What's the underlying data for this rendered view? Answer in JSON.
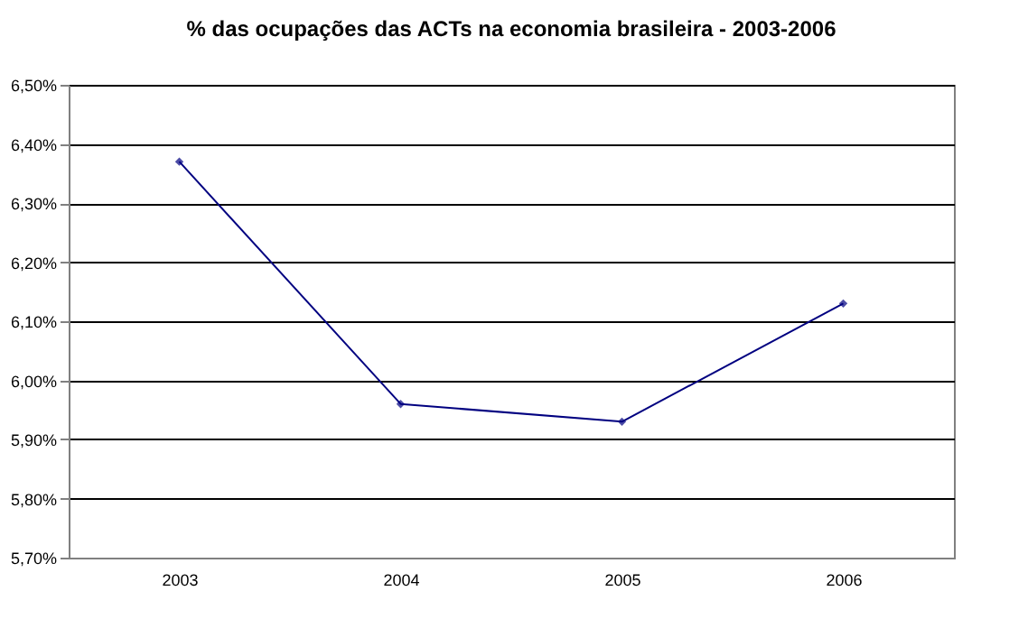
{
  "chart_data": {
    "type": "line",
    "title": "% das ocupações das ACTs na economia brasileira - 2003-2006",
    "categories": [
      "2003",
      "2004",
      "2005",
      "2006"
    ],
    "series": [
      {
        "color": "#000080",
        "values": [
          6.37,
          5.96,
          5.93,
          6.13
        ]
      }
    ],
    "ylim": [
      5.7,
      6.5
    ],
    "yticks": [
      {
        "value": 5.7,
        "label": "5,70%"
      },
      {
        "value": 5.8,
        "label": "5,80%"
      },
      {
        "value": 5.9,
        "label": "5,90%"
      },
      {
        "value": 6.0,
        "label": "6,00%"
      },
      {
        "value": 6.1,
        "label": "6,10%"
      },
      {
        "value": 6.2,
        "label": "6,20%"
      },
      {
        "value": 6.3,
        "label": "6,30%"
      },
      {
        "value": 6.4,
        "label": "6,40%"
      },
      {
        "value": 6.5,
        "label": "6,50%"
      }
    ],
    "grid": "y",
    "marker": "diamond",
    "line_style": "solid",
    "legend": false
  }
}
